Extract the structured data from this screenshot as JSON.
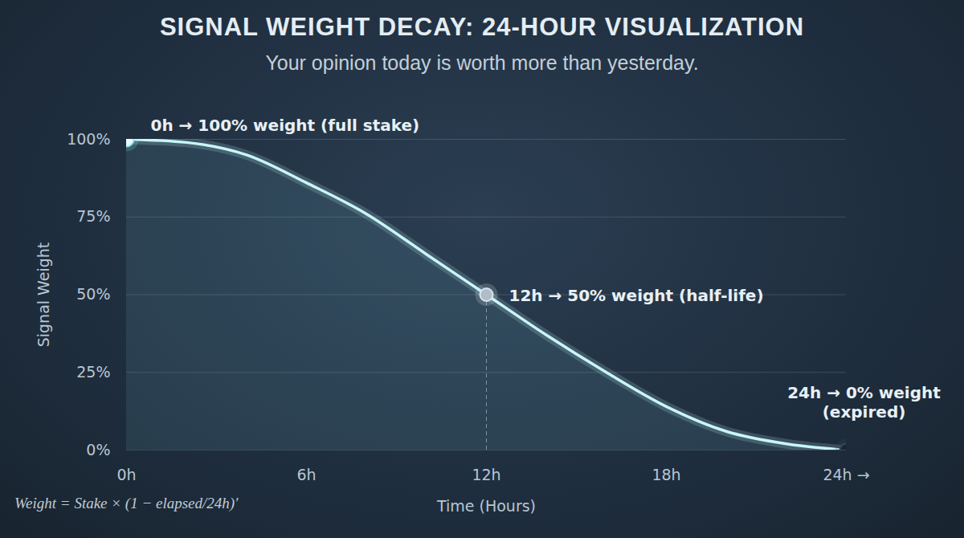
{
  "chart_data": {
    "type": "line",
    "title": "SIGNAL WEIGHT DECAY: 24-HOUR VISUALIZATION",
    "subtitle": "Your opinion today is worth more than yesterday.",
    "xlabel": "Time (Hours)",
    "ylabel": "Signal Weight",
    "x": [
      0,
      2,
      4,
      6,
      8,
      10,
      12,
      14,
      16,
      18,
      20,
      22,
      24
    ],
    "values": [
      100,
      99,
      95,
      86,
      76,
      63,
      50,
      37,
      25,
      14,
      6,
      2,
      0
    ],
    "color": "#c8f6f8",
    "xlim": [
      0,
      24
    ],
    "ylim": [
      0,
      100
    ],
    "xticks": [
      {
        "value": 0,
        "label": "0h"
      },
      {
        "value": 6,
        "label": "6h"
      },
      {
        "value": 12,
        "label": "12h"
      },
      {
        "value": 18,
        "label": "18h"
      },
      {
        "value": 24,
        "label": "24h →"
      }
    ],
    "yticks": [
      {
        "value": 0,
        "label": "0%"
      },
      {
        "value": 25,
        "label": "25%"
      },
      {
        "value": 50,
        "label": "50%"
      },
      {
        "value": 75,
        "label": "75%"
      },
      {
        "value": 100,
        "label": "100%"
      }
    ],
    "grid": true,
    "annotations": [
      {
        "x": 0,
        "y": 100,
        "text": "0h → 100% weight (full stake)"
      },
      {
        "x": 12,
        "y": 50,
        "text": "12h → 50% weight (half-life)"
      },
      {
        "x": 24,
        "y": 0,
        "text": "24h → 0% weight\n(expired)"
      }
    ],
    "formula": "Weight = Stake × (1 − elapsed/24h)′"
  }
}
